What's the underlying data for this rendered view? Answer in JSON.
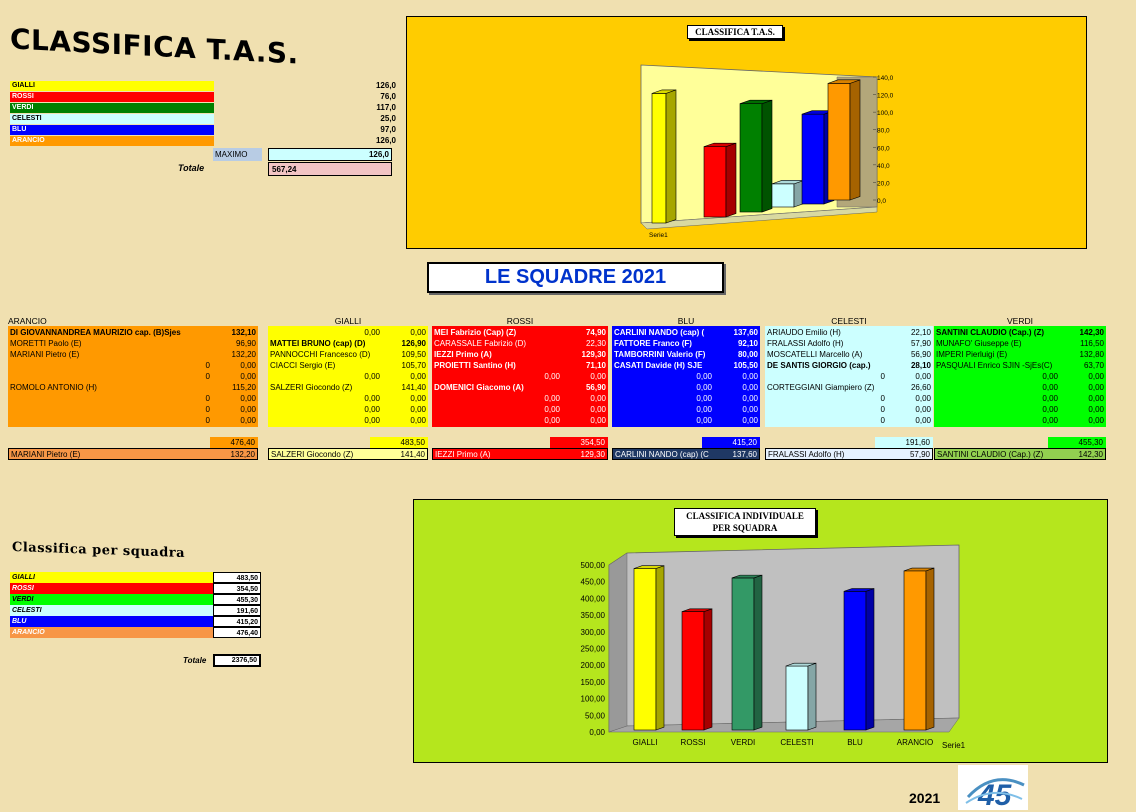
{
  "title": "CLASSIFICA T.A.S.",
  "top_table": {
    "rows": [
      {
        "label": "GIALLI",
        "value": "126,0",
        "color": "#ffff00",
        "text": "#000000"
      },
      {
        "label": "ROSSI",
        "value": "76,0",
        "color": "#ff0000",
        "text": "#ffffff"
      },
      {
        "label": "VERDI",
        "value": "117,0",
        "color": "#008000",
        "text": "#ffffff"
      },
      {
        "label": "CELESTI",
        "value": "25,0",
        "color": "#ccffff",
        "text": "#000000"
      },
      {
        "label": "BLU",
        "value": "97,0",
        "color": "#0000ff",
        "text": "#ffffff"
      },
      {
        "label": "ARANCIO",
        "value": "126,0",
        "color": "#ff9900",
        "text": "#ffffff"
      }
    ],
    "maximo_label": "MAXIMO",
    "maximo_value": "126,0",
    "totale_label": "Totale",
    "totale_value": "567,24"
  },
  "chart_tas": {
    "title": "CLASSIFICA T.A.S.",
    "series_label": "Serie1",
    "ticks": [
      "140,0",
      "120,0",
      "100,0",
      "80,0",
      "60,0",
      "40,0",
      "20,0",
      "0,0"
    ]
  },
  "banner": "LE SQUADRE 2021",
  "teams": [
    {
      "name": "ARANCIO",
      "bg": "#ff9900",
      "fg": "#000000",
      "rows": [
        {
          "n": "DI GIOVANNANDREA MAURIZIO cap. (B)Sjes",
          "v": "132,10",
          "bold": true
        },
        {
          "n": "MORETTI Paolo   (E)",
          "v": "96,90"
        },
        {
          "n": "MARIANI Pietro   (E)",
          "v": "132,20"
        },
        {
          "n": "0",
          "v": "0,00"
        },
        {
          "n": "0",
          "v": "0,00"
        },
        {
          "n": "ROMOLO ANTONIO (H)",
          "v": "115,20"
        },
        {
          "n": "0",
          "v": "0,00"
        },
        {
          "n": "0",
          "v": "0,00"
        },
        {
          "n": "0",
          "v": "0,00"
        }
      ],
      "total": "476,40",
      "best_name": "MARIANI Pietro    (E)",
      "best_value": "132,20",
      "best_bg": "#f79646"
    },
    {
      "name": "GIALLI",
      "bg": "#ffff00",
      "fg": "#000000",
      "rows": [
        {
          "n": "0,00",
          "v": "0,00"
        },
        {
          "n": "MATTEI  BRUNO (cap) (D)",
          "v": "126,90",
          "bold": true
        },
        {
          "n": "PANNOCCHI Francesco (D)",
          "v": "109,50"
        },
        {
          "n": "CIACCI Sergio (E)",
          "v": "105,70"
        },
        {
          "n": "0,00",
          "v": "0,00"
        },
        {
          "n": "SALZERI Giocondo (Z)",
          "v": "141,40"
        },
        {
          "n": "0,00",
          "v": "0,00"
        },
        {
          "n": "0,00",
          "v": "0,00"
        },
        {
          "n": "0,00",
          "v": "0,00"
        }
      ],
      "total": "483,50",
      "best_name": "SALZERI Giocondo (Z)",
      "best_value": "141,40",
      "best_bg": "#ffff99"
    },
    {
      "name": "ROSSI",
      "bg": "#ff0000",
      "fg": "#ffffff",
      "rows": [
        {
          "n": "MEI  Fabrizio (Cap) (Z)",
          "v": "74,90",
          "bold": true
        },
        {
          "n": "CARASSALE Fabrizio  (D)",
          "v": "22,30"
        },
        {
          "n": "IEZZI Primo (A)",
          "v": "129,30",
          "bold": true
        },
        {
          "n": "PROIETTI Santino (H)",
          "v": "71,10",
          "bold": true
        },
        {
          "n": "0,00",
          "v": "0,00"
        },
        {
          "n": "DOMENICI Giacomo (A)",
          "v": "56,90",
          "bold": true
        },
        {
          "n": "0,00",
          "v": "0,00"
        },
        {
          "n": "0,00",
          "v": "0,00"
        },
        {
          "n": "0,00",
          "v": "0,00"
        }
      ],
      "total": "354,50",
      "best_name": "IEZZI Primo (A)",
      "best_value": "129,30",
      "best_bg": "#ff0000"
    },
    {
      "name": "BLU",
      "bg": "#0000ff",
      "fg": "#ffffff",
      "rows": [
        {
          "n": "CARLINI NANDO (cap)  (",
          "v": "137,60",
          "bold": true
        },
        {
          "n": "FATTORE Franco  (F)",
          "v": "92,10",
          "bold": true
        },
        {
          "n": "TAMBORRINI Valerio (F)",
          "v": "80,00",
          "bold": true
        },
        {
          "n": "CASATI Davide (H)   SJE",
          "v": "105,50",
          "bold": true
        },
        {
          "n": "0,00",
          "v": "0,00"
        },
        {
          "n": "0,00",
          "v": "0,00"
        },
        {
          "n": "0,00",
          "v": "0,00"
        },
        {
          "n": "0,00",
          "v": "0,00"
        },
        {
          "n": "0,00",
          "v": "0,00"
        }
      ],
      "total": "415,20",
      "best_name": "CARLINI NANDO (cap)  (C",
      "best_value": "137,60",
      "best_bg": "#1f3864"
    },
    {
      "name": "CELESTI",
      "bg": "#ccffff",
      "fg": "#000000",
      "rows": [
        {
          "n": "ARIAUDO Emilio (H)",
          "v": "22,10"
        },
        {
          "n": "FRALASSI Adolfo (H)",
          "v": "57,90"
        },
        {
          "n": "MOSCATELLI Marcello (A)",
          "v": "56,90"
        },
        {
          "n": "DE SANTIS GIORGIO  (cap.)",
          "v": "28,10",
          "bold": true
        },
        {
          "n": "0",
          "v": "0,00"
        },
        {
          "n": "CORTEGGIANI Giampiero (Z)",
          "v": "26,60"
        },
        {
          "n": "0",
          "v": "0,00"
        },
        {
          "n": "0",
          "v": "0,00"
        },
        {
          "n": "0",
          "v": "0,00"
        }
      ],
      "total": "191,60",
      "best_name": "FRALASSI Adolfo (H)",
      "best_value": "57,90",
      "best_bg": "#e6f2ff"
    },
    {
      "name": "VERDI",
      "bg": "#00ff00",
      "fg": "#000000",
      "rows": [
        {
          "n": "SANTINI CLAUDIO   (Cap.) (Z)",
          "v": "142,30",
          "bold": true
        },
        {
          "n": "MUNAFO' Giuseppe  (E)",
          "v": "116,50"
        },
        {
          "n": "IMPERI Pierluigi (E)",
          "v": "132,80"
        },
        {
          "n": "PASQUALI Enrico   SJIN  -SjEs(C)",
          "v": "63,70"
        },
        {
          "n": "0,00",
          "v": "0,00"
        },
        {
          "n": "0,00",
          "v": "0,00"
        },
        {
          "n": "0,00",
          "v": "0,00"
        },
        {
          "n": "0,00",
          "v": "0,00"
        },
        {
          "n": "0,00",
          "v": "0,00"
        }
      ],
      "total": "455,30",
      "best_name": "SANTINI CLAUDIO   (Cap.) (Z)",
      "best_value": "142,30",
      "best_bg": "#92d050"
    }
  ],
  "classifica_squadra": {
    "title": "Classifica per squadra",
    "rows": [
      {
        "label": "GIALLI",
        "value": "483,50",
        "color": "#ffff00",
        "text": "#000000"
      },
      {
        "label": "ROSSI",
        "value": "354,50",
        "color": "#ff0000",
        "text": "#ffffff"
      },
      {
        "label": "VERDI",
        "value": "455,30",
        "color": "#00ff00",
        "text": "#000000"
      },
      {
        "label": "CELESTI",
        "value": "191,60",
        "color": "#ccffff",
        "text": "#000000"
      },
      {
        "label": "BLU",
        "value": "415,20",
        "color": "#0000ff",
        "text": "#ffffff"
      },
      {
        "label": "ARANCIO",
        "value": "476,40",
        "color": "#f79646",
        "text": "#ffffff"
      }
    ],
    "totale_label": "Totale",
    "totale_value": "2376,50"
  },
  "chart_individuale": {
    "title_line1": "CLASSIFICA INDIVIDUALE",
    "title_line2": "PER  SQUADRA",
    "series_label": "Serie1",
    "ticks": [
      "500,00",
      "450,00",
      "400,00",
      "350,00",
      "300,00",
      "250,00",
      "200,00",
      "150,00",
      "100,00",
      "50,00",
      "0,00"
    ]
  },
  "footer_year": "2021",
  "chart_data": [
    {
      "type": "bar",
      "title": "CLASSIFICA T.A.S.",
      "categories": [
        "GIALLI",
        "ROSSI",
        "VERDI",
        "CELESTI",
        "BLU",
        "ARANCIO"
      ],
      "series": [
        {
          "name": "Serie1",
          "values": [
            126,
            76,
            117,
            25,
            97,
            126
          ],
          "colors": [
            "#ffff00",
            "#ff0000",
            "#008000",
            "#ccffff",
            "#0000ff",
            "#ff9900"
          ]
        }
      ],
      "ylim": [
        0,
        140
      ],
      "grid": false
    },
    {
      "type": "bar",
      "title": "CLASSIFICA INDIVIDUALE PER  SQUADRA",
      "categories": [
        "GIALLI",
        "ROSSI",
        "VERDI",
        "CELESTI",
        "BLU",
        "ARANCIO"
      ],
      "series": [
        {
          "name": "Serie1",
          "values": [
            483.5,
            354.5,
            455.3,
            191.6,
            415.2,
            476.4
          ],
          "colors": [
            "#ffff00",
            "#ff0000",
            "#339966",
            "#ccffff",
            "#0000ff",
            "#ff9900"
          ]
        }
      ],
      "ylim": [
        0,
        500
      ],
      "grid": false
    }
  ]
}
